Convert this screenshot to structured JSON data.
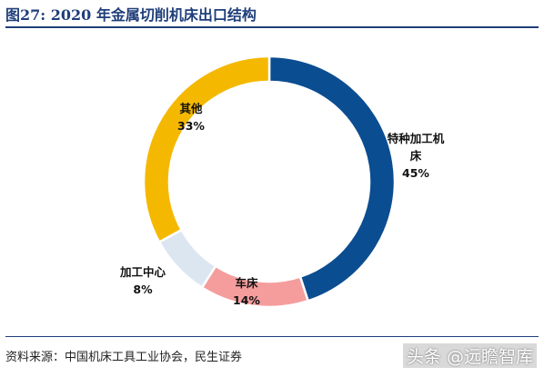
{
  "title": "图27: 2020 年金属切削机床出口结构",
  "source": "资料来源：中国机床工具工业协会，民生证券",
  "watermark": "头条 @远瞻智库",
  "chart_data": {
    "type": "pie",
    "style": "donut",
    "categories": [
      "特种加工机床",
      "车床",
      "加工中心",
      "其他"
    ],
    "values": [
      45,
      14,
      8,
      33
    ],
    "unit": "%",
    "colors": [
      "#0b4d91",
      "#f59d9d",
      "#dce6f1",
      "#f5b800"
    ],
    "labels": [
      {
        "lines": [
          "特种加工机",
          "床"
        ],
        "pct": "45%"
      },
      {
        "lines": [
          "车床"
        ],
        "pct": "14%"
      },
      {
        "lines": [
          "加工中心"
        ],
        "pct": "8%"
      },
      {
        "lines": [
          "其他"
        ],
        "pct": "33%"
      }
    ]
  }
}
